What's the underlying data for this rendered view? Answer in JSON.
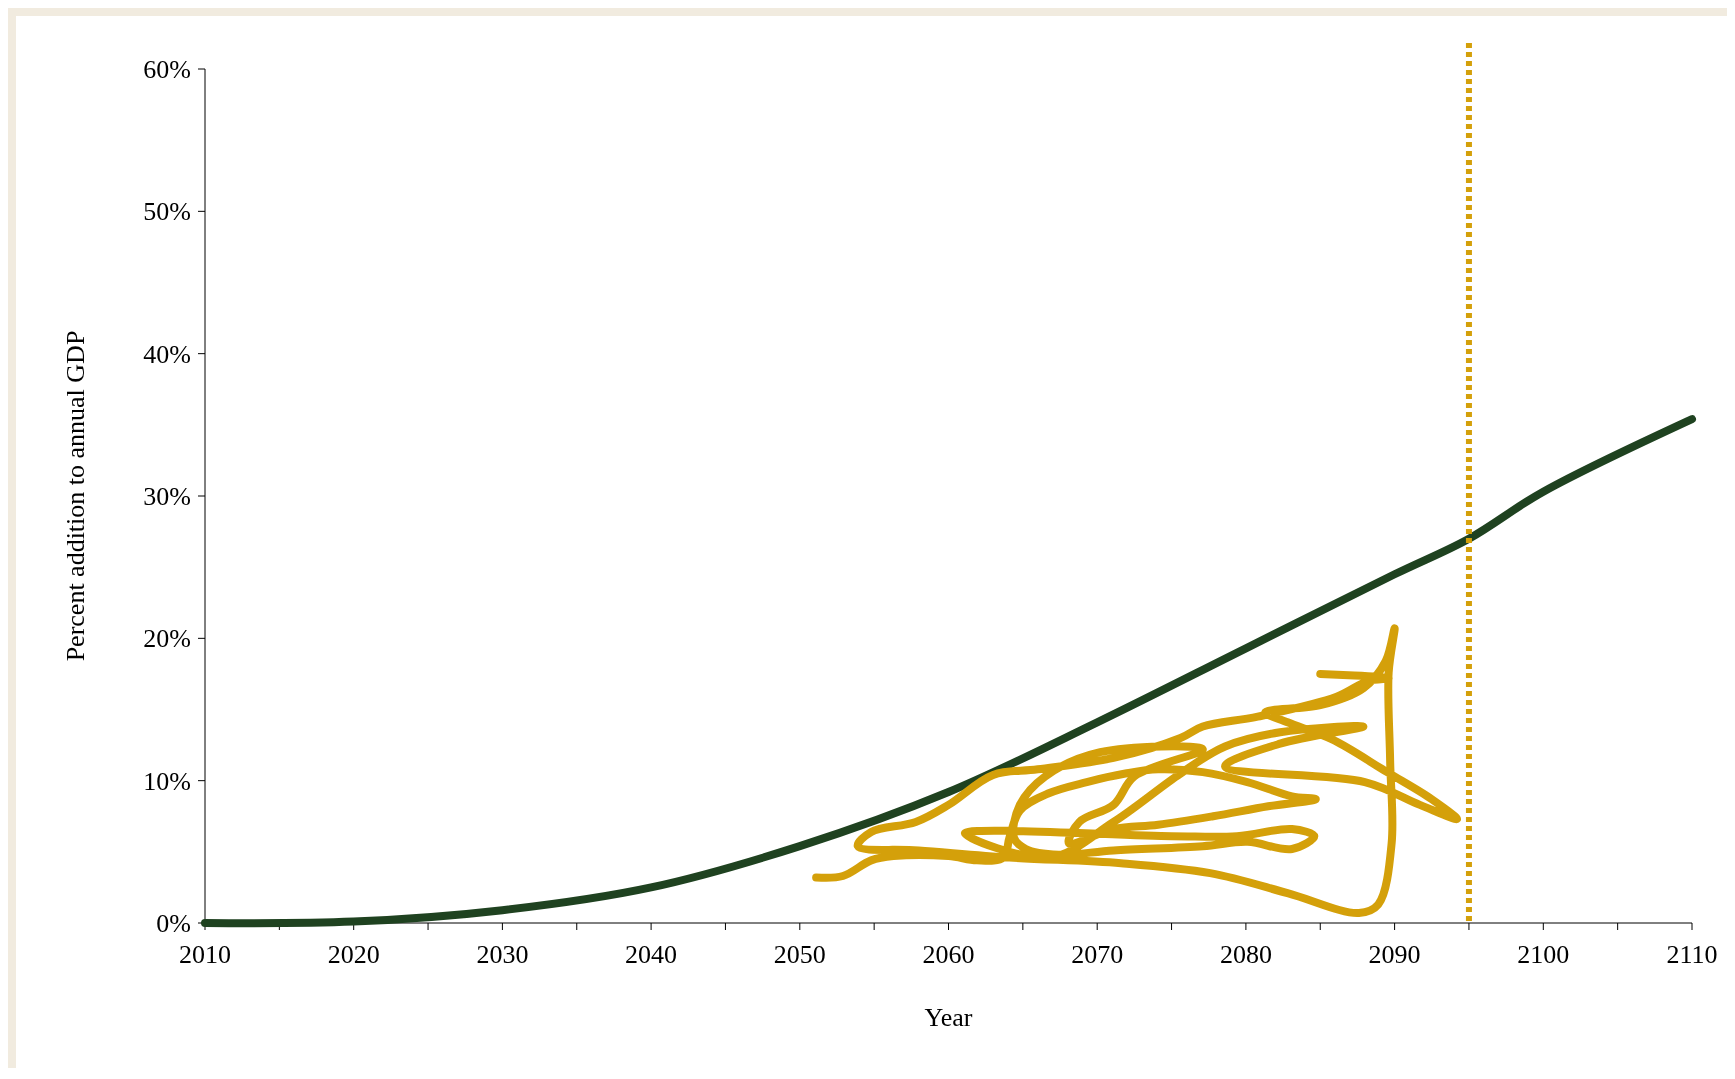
{
  "chart_data": {
    "type": "line",
    "xlabel": "Year",
    "ylabel": "Percent addition to annual GDP",
    "xlim": [
      2010,
      2110
    ],
    "xticks": [
      2010,
      {
        "value": 2015,
        "label": null
      },
      2020,
      {
        "value": 2025,
        "label": null
      },
      2030,
      {
        "value": 2035,
        "label": null
      },
      2040,
      {
        "value": 2045,
        "label": null
      },
      2050,
      {
        "value": 2055,
        "label": null
      },
      2060,
      {
        "value": 2065,
        "label": null
      },
      2070,
      {
        "value": 2075,
        "label": null
      },
      2080,
      {
        "value": 2085,
        "label": null
      },
      2090,
      {
        "value": 2095,
        "label": null
      },
      2100,
      {
        "value": 2105,
        "label": null
      },
      2110
    ],
    "ylim": [
      0,
      60
    ],
    "yticks": [
      {
        "value": 0,
        "label": "0%"
      },
      {
        "value": 10,
        "label": "10%"
      },
      {
        "value": 20,
        "label": "20%"
      },
      {
        "value": 30,
        "label": "30%"
      },
      {
        "value": 40,
        "label": "40%"
      },
      {
        "value": 50,
        "label": "50%"
      },
      {
        "value": 60,
        "label": "60%"
      }
    ],
    "grid": false,
    "line_style": "solid",
    "series": [
      {
        "color": "#1f4220",
        "x": [
          2010,
          2020,
          2030,
          2040,
          2050,
          2060,
          2070,
          2080,
          2090,
          2095,
          2100,
          2110
        ],
        "values": [
          0,
          0.1,
          0.9,
          2.5,
          5.4,
          9.2,
          14.1,
          19.3,
          24.5,
          27,
          30.3,
          35.4
        ]
      },
      {
        "color": "#d4a00a",
        "x": [
          2051.1,
          2052.9,
          2054.8,
          2056.3,
          2060,
          2061.9,
          2063.7,
          2064.1,
          2064.8,
          2066.7,
          2069.3,
          2071.9,
          2074.1,
          2077.1,
          2080.1,
          2083.1,
          2084.7,
          2081.5,
          2077.8,
          2074.1,
          2071.1,
          2068.1,
          2068.8,
          2071.1,
          2072.5,
          2077.1,
          2070.2,
          2066.5,
          2064.8,
          2064.4,
          2065.2,
          2067.4,
          2071.1,
          2077.1,
          2080.1,
          2083.1,
          2084.6,
          2083.1,
          2079.4,
          2075,
          2061.1,
          2066.8,
          2071.1,
          2075.6,
          2078.6,
          2082.3,
          2087.9,
          2082.3,
          2078.6,
          2088,
          2091.7,
          2094.2,
          2092.5,
          2089.5,
          2085.8,
          2082.8,
          2081.3,
          2085,
          2087.9,
          2089.4,
          2090,
          2089.6,
          2089.7,
          2089.8,
          2088.9,
          2087.6,
          2082.8,
          2077.6,
          2071.6,
          2064.1,
          2058,
          2053.9,
          2054.8,
          2057.8,
          2060,
          2063,
          2066,
          2071.1,
          2075.6,
          2077.1,
          2080.8,
          2086.1,
          2088.2,
          2089.6,
          2085
        ],
        "values": [
          3.2,
          3.3,
          4.4,
          4.7,
          4.7,
          4.4,
          4.6,
          6.0,
          7.9,
          9.1,
          9.9,
          10.5,
          10.8,
          10.6,
          9.9,
          8.9,
          8.7,
          8.2,
          7.5,
          6.9,
          6.6,
          5.6,
          7.1,
          8.3,
          10.3,
          12.2,
          12.0,
          10.3,
          8.3,
          6.0,
          5.2,
          4.8,
          5.1,
          5.4,
          5.7,
          5.2,
          6.1,
          6.6,
          6.1,
          6.1,
          6.3,
          4.6,
          7.1,
          10.5,
          12.4,
          13.4,
          13.8,
          12.6,
          11.0,
          9.9,
          8.3,
          7.3,
          8.7,
          10.6,
          12.9,
          14.1,
          14.8,
          15.3,
          16.5,
          18.4,
          20.7,
          17.6,
          11.4,
          5.6,
          1.3,
          0.7,
          2.1,
          3.5,
          4.2,
          4.6,
          5.1,
          5.4,
          6.4,
          7.1,
          8.3,
          10.4,
          10.8,
          11.6,
          13.0,
          13.8,
          14.5,
          15.9,
          17.0,
          17.2,
          17.5
        ]
      }
    ],
    "ref_lines": [
      {
        "axis": "x",
        "value": 2095,
        "color": "#d4a00a",
        "line_style": "dotted"
      }
    ]
  }
}
